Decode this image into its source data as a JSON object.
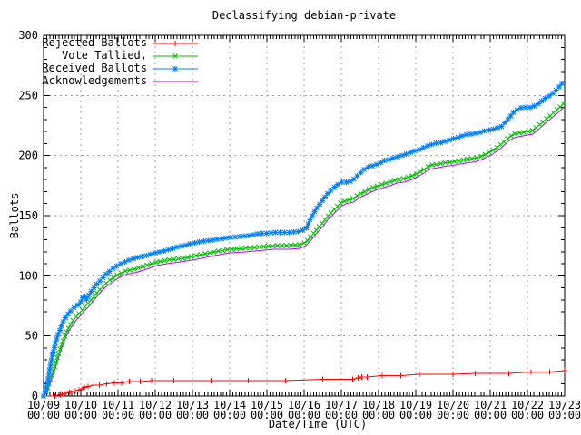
{
  "title": "Declassifying debian-private",
  "axes": {
    "x_label": "Date/Time (UTC)",
    "y_label": "Ballots",
    "y_ticks": [
      "0",
      "50",
      "100",
      "150",
      "200",
      "250",
      "300"
    ],
    "x_ticks": [
      {
        "date": "10/09",
        "time": "00:00"
      },
      {
        "date": "10/10",
        "time": "00:00"
      },
      {
        "date": "10/11",
        "time": "00:00"
      },
      {
        "date": "10/12",
        "time": "00:00"
      },
      {
        "date": "10/13",
        "time": "00:00"
      },
      {
        "date": "10/14",
        "time": "00:00"
      },
      {
        "date": "10/15",
        "time": "00:00"
      },
      {
        "date": "10/16",
        "time": "00:00"
      },
      {
        "date": "10/17",
        "time": "00:00"
      },
      {
        "date": "10/18",
        "time": "00:00"
      },
      {
        "date": "10/19",
        "time": "00:00"
      },
      {
        "date": "10/20",
        "time": "00:00"
      },
      {
        "date": "10/21",
        "time": "00:00"
      },
      {
        "date": "10/22",
        "time": "00:00"
      },
      {
        "date": "10/23",
        "time": "00:00"
      }
    ]
  },
  "legend": {
    "entries": [
      {
        "label": "Rejected Ballots",
        "key": "rejected"
      },
      {
        "label": "Vote Tallied,",
        "key": "tallied"
      },
      {
        "label": "Received Ballots",
        "key": "received"
      },
      {
        "label": "Acknowledgements",
        "key": "acknowledgements"
      }
    ]
  },
  "colors": {
    "rejected": "#ff0000",
    "tallied": "#00c000",
    "received": "#0080ff",
    "acknowledgements": "#c000ff",
    "grid": "#a0a0a0",
    "axis": "#000000",
    "background": "#ffffff"
  },
  "chart_data": {
    "type": "line",
    "title": "Declassifying debian-private",
    "xlabel": "Date/Time (UTC)",
    "ylabel": "Ballots",
    "x_unit": "days since 10/09 00:00 UTC",
    "xlim": [
      0,
      14
    ],
    "ylim": [
      0,
      300
    ],
    "x_major_step_days": 1,
    "x_minor_per_day": 12,
    "y_major_step": 50,
    "y_minor_step": 10,
    "grid": true,
    "legend_position": "top-left",
    "series": [
      {
        "name": "Rejected Ballots",
        "key": "rejected",
        "color": "#ff0000",
        "marker": "plus",
        "marker_mode": "points",
        "points": [
          [
            0,
            0
          ],
          [
            0.3,
            0
          ],
          [
            0.45,
            1
          ],
          [
            0.55,
            2
          ],
          [
            0.7,
            3
          ],
          [
            0.85,
            4
          ],
          [
            0.95,
            5
          ],
          [
            1.05,
            6
          ],
          [
            1.1,
            7
          ],
          [
            1.2,
            8
          ],
          [
            1.35,
            9
          ],
          [
            1.5,
            9
          ],
          [
            1.7,
            10
          ],
          [
            1.9,
            11
          ],
          [
            2.1,
            11
          ],
          [
            2.3,
            12
          ],
          [
            2.6,
            12
          ],
          [
            2.9,
            13
          ],
          [
            3.5,
            13
          ],
          [
            4.5,
            13
          ],
          [
            5.5,
            13
          ],
          [
            6.5,
            13
          ],
          [
            7.5,
            14
          ],
          [
            8.3,
            14
          ],
          [
            8.45,
            15
          ],
          [
            8.55,
            16
          ],
          [
            8.7,
            16
          ],
          [
            9.1,
            17
          ],
          [
            9.6,
            17
          ],
          [
            10.1,
            18
          ],
          [
            11,
            18
          ],
          [
            11.6,
            19
          ],
          [
            12.5,
            19
          ],
          [
            13.1,
            20
          ],
          [
            13.6,
            20
          ],
          [
            14,
            21
          ]
        ]
      },
      {
        "name": "Acknowledgements",
        "key": "acknowledgements",
        "color": "#c000ff",
        "marker": "none",
        "marker_mode": "none",
        "points": [
          [
            0,
            0
          ],
          [
            0.1,
            3
          ],
          [
            0.2,
            12
          ],
          [
            0.3,
            22
          ],
          [
            0.4,
            32
          ],
          [
            0.5,
            41
          ],
          [
            0.6,
            49
          ],
          [
            0.7,
            55
          ],
          [
            0.8,
            60
          ],
          [
            0.9,
            64
          ],
          [
            1,
            67
          ],
          [
            1.1,
            71
          ],
          [
            1.2,
            74
          ],
          [
            1.35,
            80
          ],
          [
            1.5,
            85
          ],
          [
            1.65,
            90
          ],
          [
            1.8,
            94
          ],
          [
            2,
            98
          ],
          [
            2.2,
            101
          ],
          [
            2.5,
            103
          ],
          [
            2.8,
            106
          ],
          [
            3,
            108
          ],
          [
            3.3,
            110
          ],
          [
            3.6,
            111
          ],
          [
            4,
            113
          ],
          [
            4.3,
            115
          ],
          [
            4.6,
            117
          ],
          [
            5,
            119
          ],
          [
            5.4,
            120
          ],
          [
            5.8,
            121
          ],
          [
            6.2,
            122
          ],
          [
            6.6,
            122
          ],
          [
            6.9,
            123
          ],
          [
            7.05,
            125
          ],
          [
            7.2,
            130
          ],
          [
            7.35,
            136
          ],
          [
            7.5,
            141
          ],
          [
            7.65,
            147
          ],
          [
            7.8,
            152
          ],
          [
            8,
            158
          ],
          [
            8.15,
            160
          ],
          [
            8.3,
            161
          ],
          [
            8.5,
            165
          ],
          [
            8.7,
            168
          ],
          [
            8.9,
            171
          ],
          [
            9.1,
            173
          ],
          [
            9.3,
            175
          ],
          [
            9.5,
            177
          ],
          [
            9.7,
            178
          ],
          [
            9.9,
            180
          ],
          [
            10.1,
            183
          ],
          [
            10.25,
            186
          ],
          [
            10.4,
            189
          ],
          [
            10.6,
            190
          ],
          [
            10.8,
            191
          ],
          [
            11,
            192
          ],
          [
            11.2,
            193
          ],
          [
            11.4,
            194
          ],
          [
            11.6,
            195
          ],
          [
            11.8,
            197
          ],
          [
            12,
            200
          ],
          [
            12.2,
            204
          ],
          [
            12.35,
            208
          ],
          [
            12.5,
            212
          ],
          [
            12.65,
            215
          ],
          [
            12.8,
            216
          ],
          [
            13,
            217
          ],
          [
            13.15,
            218
          ],
          [
            13.3,
            222
          ],
          [
            13.45,
            226
          ],
          [
            13.6,
            230
          ],
          [
            13.75,
            234
          ],
          [
            13.9,
            238
          ],
          [
            14,
            241
          ]
        ]
      },
      {
        "name": "Vote Tallied,",
        "key": "tallied",
        "color": "#00c000",
        "marker": "cross",
        "marker_mode": "path",
        "points": [
          [
            0,
            0
          ],
          [
            0.1,
            6
          ],
          [
            0.2,
            15
          ],
          [
            0.3,
            25
          ],
          [
            0.4,
            35
          ],
          [
            0.5,
            44
          ],
          [
            0.6,
            52
          ],
          [
            0.7,
            58
          ],
          [
            0.8,
            63
          ],
          [
            0.9,
            67
          ],
          [
            1,
            70
          ],
          [
            1.1,
            74
          ],
          [
            1.2,
            77
          ],
          [
            1.35,
            83
          ],
          [
            1.5,
            88
          ],
          [
            1.65,
            93
          ],
          [
            1.8,
            97
          ],
          [
            2,
            101
          ],
          [
            2.2,
            104
          ],
          [
            2.5,
            106
          ],
          [
            2.8,
            109
          ],
          [
            3,
            111
          ],
          [
            3.3,
            113
          ],
          [
            3.6,
            114
          ],
          [
            4,
            116
          ],
          [
            4.3,
            118
          ],
          [
            4.6,
            120
          ],
          [
            5,
            122
          ],
          [
            5.4,
            123
          ],
          [
            5.8,
            124
          ],
          [
            6.2,
            125
          ],
          [
            6.6,
            125
          ],
          [
            6.9,
            126
          ],
          [
            7.05,
            128
          ],
          [
            7.2,
            133
          ],
          [
            7.35,
            139
          ],
          [
            7.5,
            144
          ],
          [
            7.65,
            150
          ],
          [
            7.8,
            155
          ],
          [
            8,
            161
          ],
          [
            8.15,
            163
          ],
          [
            8.3,
            164
          ],
          [
            8.5,
            168
          ],
          [
            8.7,
            171
          ],
          [
            8.9,
            174
          ],
          [
            9.1,
            176
          ],
          [
            9.3,
            178
          ],
          [
            9.5,
            180
          ],
          [
            9.7,
            181
          ],
          [
            9.9,
            183
          ],
          [
            10.1,
            186
          ],
          [
            10.25,
            189
          ],
          [
            10.4,
            192
          ],
          [
            10.6,
            193
          ],
          [
            10.8,
            194
          ],
          [
            11,
            195
          ],
          [
            11.2,
            196
          ],
          [
            11.4,
            197
          ],
          [
            11.6,
            198
          ],
          [
            11.8,
            200
          ],
          [
            12,
            203
          ],
          [
            12.2,
            207
          ],
          [
            12.35,
            211
          ],
          [
            12.5,
            215
          ],
          [
            12.65,
            218
          ],
          [
            12.8,
            219
          ],
          [
            13,
            220
          ],
          [
            13.15,
            221
          ],
          [
            13.3,
            225
          ],
          [
            13.45,
            229
          ],
          [
            13.6,
            233
          ],
          [
            13.75,
            237
          ],
          [
            13.9,
            241
          ],
          [
            14,
            244
          ]
        ]
      },
      {
        "name": "Received Ballots",
        "key": "received",
        "color": "#0080ff",
        "marker": "asterisk",
        "marker_mode": "path",
        "points": [
          [
            0,
            0
          ],
          [
            0.05,
            3
          ],
          [
            0.1,
            10
          ],
          [
            0.15,
            20
          ],
          [
            0.2,
            28
          ],
          [
            0.25,
            35
          ],
          [
            0.3,
            42
          ],
          [
            0.35,
            47
          ],
          [
            0.4,
            52
          ],
          [
            0.5,
            60
          ],
          [
            0.6,
            66
          ],
          [
            0.7,
            70
          ],
          [
            0.8,
            73
          ],
          [
            0.9,
            75
          ],
          [
            1,
            78
          ],
          [
            1.05,
            82
          ],
          [
            1.1,
            84
          ],
          [
            1.15,
            80
          ],
          [
            1.25,
            86
          ],
          [
            1.4,
            92
          ],
          [
            1.55,
            97
          ],
          [
            1.7,
            102
          ],
          [
            1.85,
            106
          ],
          [
            2,
            109
          ],
          [
            2.2,
            112
          ],
          [
            2.4,
            114
          ],
          [
            2.6,
            116
          ],
          [
            2.8,
            117
          ],
          [
            3,
            119
          ],
          [
            3.3,
            121
          ],
          [
            3.6,
            124
          ],
          [
            4,
            127
          ],
          [
            4.3,
            129
          ],
          [
            4.6,
            130
          ],
          [
            5,
            132
          ],
          [
            5.4,
            133
          ],
          [
            5.8,
            135
          ],
          [
            6.2,
            136
          ],
          [
            6.6,
            136
          ],
          [
            6.9,
            137
          ],
          [
            7.05,
            139
          ],
          [
            7.15,
            146
          ],
          [
            7.25,
            152
          ],
          [
            7.35,
            157
          ],
          [
            7.45,
            161
          ],
          [
            7.6,
            167
          ],
          [
            7.75,
            172
          ],
          [
            7.9,
            176
          ],
          [
            8,
            178
          ],
          [
            8.15,
            178
          ],
          [
            8.3,
            179
          ],
          [
            8.45,
            184
          ],
          [
            8.6,
            188
          ],
          [
            8.75,
            191
          ],
          [
            8.9,
            192
          ],
          [
            9,
            193
          ],
          [
            9.15,
            196
          ],
          [
            9.3,
            197
          ],
          [
            9.5,
            199
          ],
          [
            9.7,
            201
          ],
          [
            9.9,
            203
          ],
          [
            10.1,
            205
          ],
          [
            10.3,
            208
          ],
          [
            10.5,
            210
          ],
          [
            10.7,
            211
          ],
          [
            10.9,
            213
          ],
          [
            11.1,
            215
          ],
          [
            11.3,
            217
          ],
          [
            11.5,
            218
          ],
          [
            11.7,
            219
          ],
          [
            11.9,
            221
          ],
          [
            12.1,
            222
          ],
          [
            12.3,
            224
          ],
          [
            12.45,
            229
          ],
          [
            12.55,
            233
          ],
          [
            12.65,
            237
          ],
          [
            12.75,
            239
          ],
          [
            12.9,
            240
          ],
          [
            13.1,
            240
          ],
          [
            13.25,
            242
          ],
          [
            13.4,
            246
          ],
          [
            13.55,
            249
          ],
          [
            13.7,
            252
          ],
          [
            13.85,
            257
          ],
          [
            14,
            263
          ]
        ]
      }
    ]
  }
}
